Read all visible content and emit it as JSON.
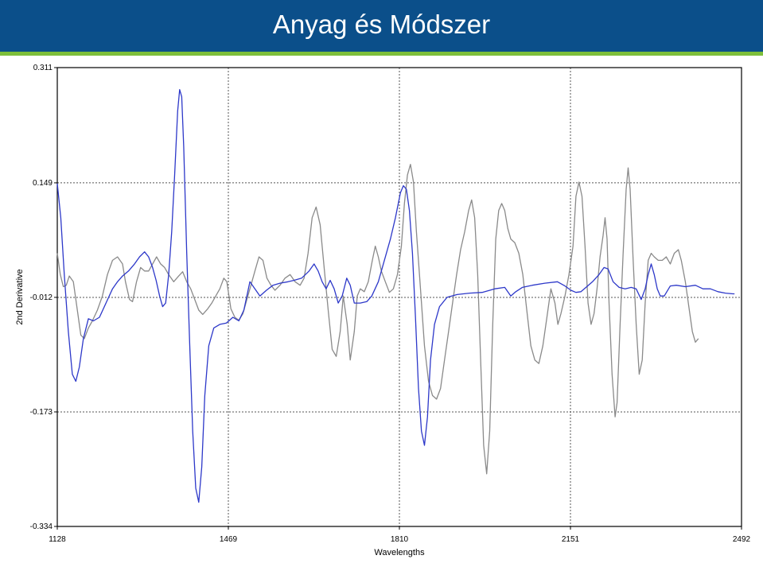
{
  "header": {
    "title": "Anyag és Módszer"
  },
  "colors": {
    "header_bg": "#0b4f8a",
    "accent_green": "#7dbf3a",
    "series_blue": "#2d38c9",
    "series_gray": "#8a8a8a"
  },
  "chart_data": {
    "type": "line",
    "title": "",
    "xlabel": "Wavelengths",
    "ylabel": "2nd Derivative",
    "xlim": [
      1128,
      2492
    ],
    "ylim": [
      -0.334,
      0.311
    ],
    "x_ticks": [
      1128,
      1469,
      1810,
      2151,
      2492
    ],
    "x_tick_labels": [
      "1128",
      "1469",
      "1810",
      "2151",
      "2492"
    ],
    "y_ticks": [
      0.311,
      0.149,
      -0.012,
      -0.173,
      -0.334
    ],
    "y_tick_labels": [
      "0.311",
      "0.149",
      "-0.012",
      "-0.173",
      "-0.334"
    ],
    "grid": true,
    "series": [
      {
        "color": "#2d38c9",
        "points": [
          [
            1128,
            0.148
          ],
          [
            1135,
            0.1
          ],
          [
            1142,
            0.02
          ],
          [
            1150,
            -0.06
          ],
          [
            1158,
            -0.12
          ],
          [
            1165,
            -0.13
          ],
          [
            1172,
            -0.11
          ],
          [
            1180,
            -0.07
          ],
          [
            1190,
            -0.042
          ],
          [
            1200,
            -0.045
          ],
          [
            1212,
            -0.04
          ],
          [
            1225,
            -0.02
          ],
          [
            1238,
            0.0
          ],
          [
            1248,
            0.01
          ],
          [
            1258,
            0.018
          ],
          [
            1270,
            0.025
          ],
          [
            1282,
            0.035
          ],
          [
            1292,
            0.045
          ],
          [
            1302,
            0.052
          ],
          [
            1310,
            0.045
          ],
          [
            1318,
            0.03
          ],
          [
            1325,
            0.012
          ],
          [
            1332,
            -0.01
          ],
          [
            1338,
            -0.025
          ],
          [
            1344,
            -0.02
          ],
          [
            1350,
            0.02
          ],
          [
            1356,
            0.08
          ],
          [
            1362,
            0.16
          ],
          [
            1368,
            0.25
          ],
          [
            1372,
            0.28
          ],
          [
            1376,
            0.27
          ],
          [
            1380,
            0.2
          ],
          [
            1386,
            0.05
          ],
          [
            1392,
            -0.08
          ],
          [
            1398,
            -0.2
          ],
          [
            1404,
            -0.28
          ],
          [
            1410,
            -0.3
          ],
          [
            1416,
            -0.25
          ],
          [
            1422,
            -0.15
          ],
          [
            1430,
            -0.08
          ],
          [
            1440,
            -0.055
          ],
          [
            1452,
            -0.05
          ],
          [
            1465,
            -0.048
          ],
          [
            1478,
            -0.04
          ],
          [
            1490,
            -0.045
          ],
          [
            1500,
            -0.03
          ],
          [
            1512,
            0.01
          ],
          [
            1522,
            0.0
          ],
          [
            1532,
            -0.01
          ],
          [
            1545,
            -0.002
          ],
          [
            1558,
            0.005
          ],
          [
            1572,
            0.008
          ],
          [
            1588,
            0.01
          ],
          [
            1600,
            0.012
          ],
          [
            1615,
            0.015
          ],
          [
            1630,
            0.025
          ],
          [
            1640,
            0.035
          ],
          [
            1648,
            0.025
          ],
          [
            1656,
            0.01
          ],
          [
            1664,
            0.0
          ],
          [
            1672,
            0.012
          ],
          [
            1680,
            0.0
          ],
          [
            1688,
            -0.02
          ],
          [
            1696,
            -0.01
          ],
          [
            1705,
            0.015
          ],
          [
            1712,
            0.005
          ],
          [
            1720,
            -0.02
          ],
          [
            1732,
            -0.02
          ],
          [
            1745,
            -0.018
          ],
          [
            1755,
            -0.01
          ],
          [
            1768,
            0.01
          ],
          [
            1780,
            0.04
          ],
          [
            1792,
            0.07
          ],
          [
            1802,
            0.1
          ],
          [
            1812,
            0.135
          ],
          [
            1818,
            0.145
          ],
          [
            1824,
            0.14
          ],
          [
            1830,
            0.11
          ],
          [
            1836,
            0.05
          ],
          [
            1842,
            -0.04
          ],
          [
            1848,
            -0.14
          ],
          [
            1854,
            -0.2
          ],
          [
            1860,
            -0.22
          ],
          [
            1866,
            -0.18
          ],
          [
            1872,
            -0.1
          ],
          [
            1880,
            -0.05
          ],
          [
            1890,
            -0.025
          ],
          [
            1905,
            -0.012
          ],
          [
            1925,
            -0.008
          ],
          [
            1950,
            -0.006
          ],
          [
            1975,
            -0.005
          ],
          [
            2000,
            0.0
          ],
          [
            2020,
            0.002
          ],
          [
            2032,
            -0.01
          ],
          [
            2042,
            -0.004
          ],
          [
            2055,
            0.002
          ],
          [
            2075,
            0.005
          ],
          [
            2100,
            0.008
          ],
          [
            2125,
            0.01
          ],
          [
            2140,
            0.004
          ],
          [
            2152,
            -0.002
          ],
          [
            2162,
            -0.005
          ],
          [
            2172,
            -0.004
          ],
          [
            2182,
            0.002
          ],
          [
            2195,
            0.01
          ],
          [
            2208,
            0.02
          ],
          [
            2218,
            0.03
          ],
          [
            2226,
            0.028
          ],
          [
            2236,
            0.01
          ],
          [
            2248,
            0.002
          ],
          [
            2260,
            0.0
          ],
          [
            2272,
            0.002
          ],
          [
            2282,
            0.0
          ],
          [
            2292,
            -0.015
          ],
          [
            2300,
            0.0
          ],
          [
            2306,
            0.02
          ],
          [
            2312,
            0.035
          ],
          [
            2318,
            0.02
          ],
          [
            2324,
            0.0
          ],
          [
            2330,
            -0.01
          ],
          [
            2338,
            -0.01
          ],
          [
            2350,
            0.004
          ],
          [
            2362,
            0.005
          ],
          [
            2380,
            0.003
          ],
          [
            2400,
            0.005
          ],
          [
            2415,
            0.0
          ],
          [
            2430,
            0.0
          ],
          [
            2445,
            -0.004
          ],
          [
            2460,
            -0.006
          ],
          [
            2475,
            -0.007
          ],
          [
            2478,
            -0.007
          ]
        ]
      },
      {
        "color": "#8a8a8a",
        "points": [
          [
            1128,
            0.05
          ],
          [
            1134,
            0.02
          ],
          [
            1140,
            0.003
          ],
          [
            1146,
            0.005
          ],
          [
            1152,
            0.018
          ],
          [
            1160,
            0.01
          ],
          [
            1168,
            -0.03
          ],
          [
            1175,
            -0.065
          ],
          [
            1182,
            -0.07
          ],
          [
            1190,
            -0.055
          ],
          [
            1198,
            -0.045
          ],
          [
            1208,
            -0.03
          ],
          [
            1218,
            -0.01
          ],
          [
            1228,
            0.02
          ],
          [
            1238,
            0.04
          ],
          [
            1248,
            0.045
          ],
          [
            1258,
            0.035
          ],
          [
            1264,
            0.01
          ],
          [
            1272,
            -0.015
          ],
          [
            1278,
            -0.018
          ],
          [
            1286,
            0.01
          ],
          [
            1294,
            0.03
          ],
          [
            1302,
            0.025
          ],
          [
            1310,
            0.025
          ],
          [
            1318,
            0.035
          ],
          [
            1326,
            0.045
          ],
          [
            1334,
            0.035
          ],
          [
            1342,
            0.03
          ],
          [
            1350,
            0.02
          ],
          [
            1360,
            0.01
          ],
          [
            1370,
            0.018
          ],
          [
            1378,
            0.024
          ],
          [
            1386,
            0.01
          ],
          [
            1394,
            0.0
          ],
          [
            1402,
            -0.015
          ],
          [
            1410,
            -0.03
          ],
          [
            1418,
            -0.036
          ],
          [
            1428,
            -0.028
          ],
          [
            1436,
            -0.02
          ],
          [
            1444,
            -0.01
          ],
          [
            1452,
            0.0
          ],
          [
            1460,
            0.015
          ],
          [
            1466,
            0.01
          ],
          [
            1474,
            -0.028
          ],
          [
            1482,
            -0.04
          ],
          [
            1490,
            -0.044
          ],
          [
            1498,
            -0.035
          ],
          [
            1506,
            -0.015
          ],
          [
            1514,
            0.005
          ],
          [
            1522,
            0.025
          ],
          [
            1530,
            0.045
          ],
          [
            1538,
            0.04
          ],
          [
            1546,
            0.015
          ],
          [
            1554,
            0.005
          ],
          [
            1562,
            -0.002
          ],
          [
            1572,
            0.005
          ],
          [
            1582,
            0.015
          ],
          [
            1592,
            0.02
          ],
          [
            1602,
            0.01
          ],
          [
            1612,
            0.005
          ],
          [
            1620,
            0.015
          ],
          [
            1628,
            0.05
          ],
          [
            1636,
            0.1
          ],
          [
            1644,
            0.115
          ],
          [
            1652,
            0.09
          ],
          [
            1660,
            0.03
          ],
          [
            1668,
            -0.03
          ],
          [
            1676,
            -0.085
          ],
          [
            1684,
            -0.095
          ],
          [
            1692,
            -0.06
          ],
          [
            1698,
            -0.01
          ],
          [
            1706,
            -0.05
          ],
          [
            1712,
            -0.1
          ],
          [
            1720,
            -0.06
          ],
          [
            1726,
            -0.01
          ],
          [
            1732,
            0.0
          ],
          [
            1740,
            -0.004
          ],
          [
            1748,
            0.01
          ],
          [
            1756,
            0.04
          ],
          [
            1762,
            0.06
          ],
          [
            1768,
            0.045
          ],
          [
            1774,
            0.025
          ],
          [
            1782,
            0.01
          ],
          [
            1790,
            -0.005
          ],
          [
            1798,
            0.0
          ],
          [
            1806,
            0.02
          ],
          [
            1814,
            0.06
          ],
          [
            1820,
            0.12
          ],
          [
            1826,
            0.16
          ],
          [
            1832,
            0.175
          ],
          [
            1838,
            0.15
          ],
          [
            1844,
            0.08
          ],
          [
            1852,
            0.0
          ],
          [
            1860,
            -0.08
          ],
          [
            1868,
            -0.13
          ],
          [
            1876,
            -0.15
          ],
          [
            1884,
            -0.155
          ],
          [
            1892,
            -0.14
          ],
          [
            1900,
            -0.1
          ],
          [
            1908,
            -0.06
          ],
          [
            1916,
            -0.02
          ],
          [
            1924,
            0.02
          ],
          [
            1932,
            0.055
          ],
          [
            1940,
            0.08
          ],
          [
            1948,
            0.11
          ],
          [
            1954,
            0.125
          ],
          [
            1960,
            0.1
          ],
          [
            1966,
            0.02
          ],
          [
            1972,
            -0.1
          ],
          [
            1978,
            -0.22
          ],
          [
            1984,
            -0.26
          ],
          [
            1990,
            -0.2
          ],
          [
            1996,
            -0.05
          ],
          [
            2002,
            0.07
          ],
          [
            2008,
            0.11
          ],
          [
            2014,
            0.12
          ],
          [
            2020,
            0.11
          ],
          [
            2026,
            0.085
          ],
          [
            2032,
            0.07
          ],
          [
            2040,
            0.065
          ],
          [
            2048,
            0.05
          ],
          [
            2056,
            0.02
          ],
          [
            2064,
            -0.03
          ],
          [
            2072,
            -0.08
          ],
          [
            2080,
            -0.1
          ],
          [
            2088,
            -0.105
          ],
          [
            2096,
            -0.08
          ],
          [
            2104,
            -0.04
          ],
          [
            2112,
            0.0
          ],
          [
            2120,
            -0.02
          ],
          [
            2126,
            -0.05
          ],
          [
            2132,
            -0.035
          ],
          [
            2140,
            -0.01
          ],
          [
            2148,
            0.02
          ],
          [
            2156,
            0.06
          ],
          [
            2162,
            0.13
          ],
          [
            2168,
            0.15
          ],
          [
            2174,
            0.13
          ],
          [
            2180,
            0.06
          ],
          [
            2186,
            -0.02
          ],
          [
            2192,
            -0.05
          ],
          [
            2198,
            -0.035
          ],
          [
            2204,
            0.0
          ],
          [
            2210,
            0.045
          ],
          [
            2216,
            0.075
          ],
          [
            2220,
            0.1
          ],
          [
            2224,
            0.07
          ],
          [
            2228,
            -0.02
          ],
          [
            2234,
            -0.12
          ],
          [
            2240,
            -0.18
          ],
          [
            2244,
            -0.16
          ],
          [
            2250,
            -0.05
          ],
          [
            2256,
            0.05
          ],
          [
            2262,
            0.14
          ],
          [
            2266,
            0.17
          ],
          [
            2270,
            0.14
          ],
          [
            2276,
            0.04
          ],
          [
            2282,
            -0.05
          ],
          [
            2288,
            -0.12
          ],
          [
            2294,
            -0.1
          ],
          [
            2300,
            -0.02
          ],
          [
            2306,
            0.04
          ],
          [
            2312,
            0.05
          ],
          [
            2318,
            0.045
          ],
          [
            2326,
            0.04
          ],
          [
            2334,
            0.04
          ],
          [
            2342,
            0.045
          ],
          [
            2350,
            0.035
          ],
          [
            2358,
            0.05
          ],
          [
            2366,
            0.055
          ],
          [
            2372,
            0.04
          ],
          [
            2380,
            0.01
          ],
          [
            2388,
            -0.03
          ],
          [
            2394,
            -0.06
          ],
          [
            2400,
            -0.075
          ],
          [
            2406,
            -0.07
          ]
        ]
      }
    ]
  }
}
